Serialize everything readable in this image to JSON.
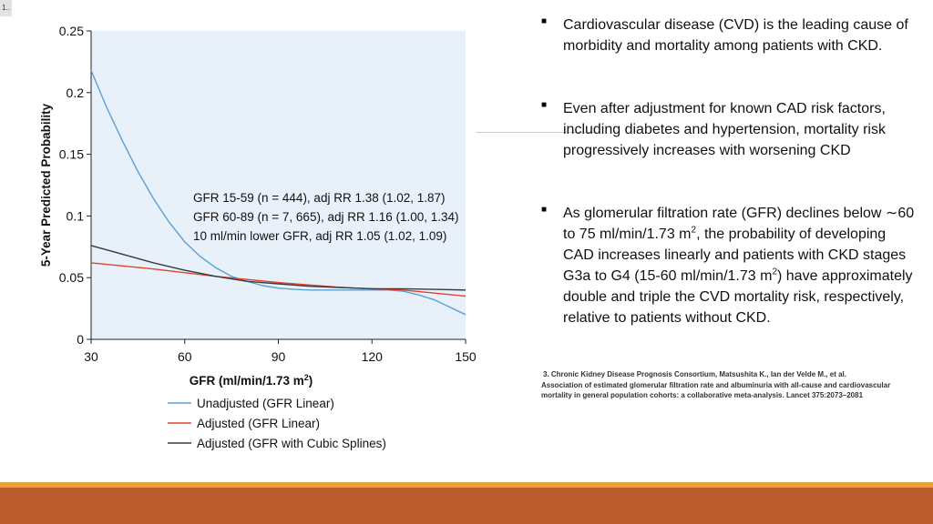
{
  "slide_number": "1..",
  "bullets": [
    {
      "text": "Cardiovascular disease (CVD) is the leading cause of morbidity and mortality among patients with CKD."
    },
    {
      "text": "Even after adjustment for known CAD risk factors, including diabetes and hypertension, mortality risk progressively increases with worsening CKD"
    },
    {
      "text_a": " As glomerular filtration rate (GFR) declines below ∼60 to 75 ml/min/1.73 m",
      "sup_a": "2",
      "text_b": ", the probability of developing CAD increases linearly and patients with CKD stages G3a to G4 (15-60 ml/min/1.73 m",
      "sup_b": "2",
      "text_c": ") have approximately double and triple the CVD mortality risk, respectively, relative to patients without CKD."
    }
  ],
  "reference": {
    "line1": "3. Chronic Kidney Disease Prognosis Consortium, Matsushita K., Ian der Velde M., et al.",
    "line2": "Association of estimated glomerular filtration rate and albuminuria with all-cause and cardiovascular",
    "line3": "mortality in general population cohorts: a collaborative meta-analysis. Lancet 375:2073–2081"
  },
  "colors": {
    "plot_bg": "#e8f1fa",
    "unadjusted": "#5a9fd4",
    "adjusted": "#e0432f",
    "splines": "#3a3a3a",
    "band": "#bb5a2c",
    "band_line": "#e8a13a"
  },
  "chart_data": {
    "type": "line",
    "xlabel": "GFR (ml/min/1.73 m",
    "xlabel_sup": "2",
    "xlabel_end": ")",
    "ylabel": "5-Year Predicted Probability",
    "xlim": [
      30,
      150
    ],
    "ylim": [
      0,
      0.25
    ],
    "xticks": [
      30,
      60,
      90,
      120,
      150
    ],
    "xtick_labels": [
      "30",
      "60",
      "90",
      "120",
      "150"
    ],
    "yticks": [
      0,
      0.05,
      0.1,
      0.15,
      0.2,
      0.25
    ],
    "ytick_labels": [
      "0",
      "0.05",
      "0.1",
      "0.15",
      "0.2",
      "0.25"
    ],
    "annotations": [
      "GFR 15-59 (n = 444), adj RR 1.38 (1.02, 1.87)",
      "GFR 60-89 (n = 7, 665), adj RR 1.16 (1.00, 1.34)",
      "10 ml/min lower GFR, adj RR 1.05 (1.02, 1.09)"
    ],
    "legend_position": "bottom",
    "series": [
      {
        "name": "Unadjusted (GFR Linear)",
        "color": "#5a9fd4",
        "x": [
          30,
          35,
          40,
          45,
          50,
          55,
          60,
          65,
          70,
          75,
          80,
          85,
          90,
          95,
          100,
          105,
          110,
          115,
          120,
          125,
          130,
          135,
          140,
          145,
          150
        ],
        "y": [
          0.218,
          0.188,
          0.161,
          0.136,
          0.114,
          0.095,
          0.079,
          0.067,
          0.058,
          0.051,
          0.047,
          0.0435,
          0.0415,
          0.0405,
          0.04,
          0.04,
          0.04,
          0.04,
          0.04,
          0.04,
          0.039,
          0.036,
          0.032,
          0.026,
          0.02
        ]
      },
      {
        "name": "Adjusted (GFR Linear)",
        "color": "#e0432f",
        "x": [
          30,
          50,
          70,
          90,
          110,
          130,
          150
        ],
        "y": [
          0.062,
          0.057,
          0.051,
          0.046,
          0.042,
          0.04,
          0.035
        ]
      },
      {
        "name": "Adjusted (GFR with Cubic Splines)",
        "color": "#3a3a3a",
        "x": [
          30,
          40,
          50,
          60,
          70,
          80,
          90,
          100,
          110,
          120,
          130,
          140,
          150
        ],
        "y": [
          0.076,
          0.069,
          0.062,
          0.056,
          0.051,
          0.047,
          0.045,
          0.043,
          0.042,
          0.041,
          0.041,
          0.0405,
          0.04
        ]
      }
    ]
  }
}
